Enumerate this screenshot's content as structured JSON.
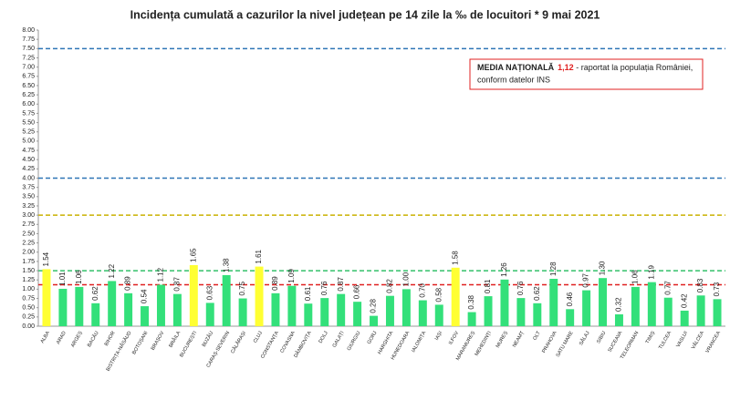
{
  "chart_data": {
    "type": "bar",
    "title": "Incidența cumulată a cazurilor la nivel județean pe 14 zile la ‰ de locuitori *  9 mai 2021",
    "categories": [
      "ALBA",
      "ARAD",
      "ARGEȘ",
      "BACĂU",
      "BIHOR",
      "BISTRIȚA-NĂSĂUD",
      "BOTOȘANI",
      "BRAȘOV",
      "BRĂILA",
      "BUCUREȘTI",
      "BUZĂU",
      "CARAȘ-SEVERIN",
      "CĂLĂRAȘI",
      "CLUJ",
      "CONSTANȚA",
      "COVASNA",
      "DÂMBOVIȚA",
      "DOLJ",
      "GALAȚI",
      "GIURGIU",
      "GORJ",
      "HARGHITA",
      "HUNEDOARA",
      "IALOMIȚA",
      "IAȘI",
      "ILFOV",
      "MARAMUREȘ",
      "MEHEDINȚI",
      "MUREȘ",
      "NEAMȚ",
      "OLT",
      "PRAHOVA",
      "SATU MARE",
      "SĂLAJ",
      "SIBIU",
      "SUCEAVA",
      "TELEORMAN",
      "TIMIȘ",
      "TULCEA",
      "VASLUI",
      "VÂLCEA",
      "VRANCEA"
    ],
    "values": [
      1.54,
      1.01,
      1.06,
      0.62,
      1.22,
      0.89,
      0.54,
      1.12,
      0.87,
      1.65,
      0.63,
      1.38,
      0.75,
      1.61,
      0.89,
      1.09,
      0.61,
      0.76,
      0.87,
      0.66,
      0.28,
      0.82,
      1.0,
      0.7,
      0.58,
      1.58,
      0.38,
      0.81,
      1.26,
      0.76,
      0.62,
      1.28,
      0.46,
      0.97,
      1.3,
      0.32,
      1.06,
      1.19,
      0.77,
      0.42,
      0.83,
      0.73
    ],
    "value_labels": [
      "1.54",
      "1.01",
      "1.06",
      "0.62",
      "1.22",
      "0.89",
      "0.54",
      "1.12",
      "0.87",
      "1.65",
      "0.63",
      "1.38",
      "0.75",
      "1.61",
      "0.89",
      "1.09",
      "0.61",
      "0.76",
      "0.87",
      "0.66",
      "0.28",
      "0.82",
      "1.00",
      "0.70",
      "0.58",
      "1.58",
      "0.38",
      "0.81",
      "1.26",
      "0.76",
      "0.62",
      "1.28",
      "0.46",
      "0.97",
      "1.30",
      "0.32",
      "1.06",
      "1.19",
      "0.77",
      "0.42",
      "0.83",
      "0.73"
    ],
    "colors": [
      "#ffff33",
      "#33e07a",
      "#33e07a",
      "#33e07a",
      "#33e07a",
      "#33e07a",
      "#33e07a",
      "#33e07a",
      "#33e07a",
      "#ffff33",
      "#33e07a",
      "#33e07a",
      "#33e07a",
      "#ffff33",
      "#33e07a",
      "#33e07a",
      "#33e07a",
      "#33e07a",
      "#33e07a",
      "#33e07a",
      "#33e07a",
      "#33e07a",
      "#33e07a",
      "#33e07a",
      "#33e07a",
      "#ffff33",
      "#33e07a",
      "#33e07a",
      "#33e07a",
      "#33e07a",
      "#33e07a",
      "#33e07a",
      "#33e07a",
      "#33e07a",
      "#33e07a",
      "#33e07a",
      "#33e07a",
      "#33e07a",
      "#33e07a",
      "#33e07a",
      "#33e07a",
      "#33e07a"
    ],
    "ylim": [
      0,
      8
    ],
    "yticks": [
      {
        "value": 0,
        "label": "0.00"
      },
      {
        "value": 0.25,
        "label": "0.25"
      },
      {
        "value": 0.5,
        "label": "0.50"
      },
      {
        "value": 0.75,
        "label": "0.75"
      },
      {
        "value": 1,
        "label": "1.00"
      },
      {
        "value": 1.25,
        "label": "1.25"
      },
      {
        "value": 1.5,
        "label": "1.50"
      },
      {
        "value": 1.75,
        "label": "1.75"
      },
      {
        "value": 2,
        "label": "2.00"
      },
      {
        "value": 2.25,
        "label": "2.25"
      },
      {
        "value": 2.5,
        "label": "2.50"
      },
      {
        "value": 2.75,
        "label": "2.75"
      },
      {
        "value": 3,
        "label": "3.00"
      },
      {
        "value": 3.25,
        "label": "3.25"
      },
      {
        "value": 3.5,
        "label": "3.50"
      },
      {
        "value": 3.75,
        "label": "3.75"
      },
      {
        "value": 4,
        "label": "4.00"
      },
      {
        "value": 4.25,
        "label": "4.25"
      },
      {
        "value": 4.5,
        "label": "4.50"
      },
      {
        "value": 4.75,
        "label": "4.75"
      },
      {
        "value": 5,
        "label": "5.00"
      },
      {
        "value": 5.25,
        "label": "5.25"
      },
      {
        "value": 5.5,
        "label": "5.50"
      },
      {
        "value": 5.75,
        "label": "5.75"
      },
      {
        "value": 6,
        "label": "6.00"
      },
      {
        "value": 6.25,
        "label": "6.25"
      },
      {
        "value": 6.5,
        "label": "6.50"
      },
      {
        "value": 6.75,
        "label": "6.75"
      },
      {
        "value": 7,
        "label": "7.00"
      },
      {
        "value": 7.25,
        "label": "7.25"
      },
      {
        "value": 7.5,
        "label": "7.50"
      },
      {
        "value": 7.75,
        "label": "7.75"
      },
      {
        "value": 8,
        "label": "8.00"
      }
    ],
    "reference_lines": [
      {
        "value": 7.5,
        "color": "#2e75b6"
      },
      {
        "value": 4,
        "color": "#2e75b6"
      },
      {
        "value": 3,
        "color": "#c9b000"
      },
      {
        "value": 1.5,
        "color": "#33c06a"
      },
      {
        "value": 1.12,
        "color": "#e02020"
      }
    ],
    "annotation": {
      "label": "MEDIA NAȚIONALĂ",
      "value": "1,12",
      "text": " - raportat la populația României,",
      "text2": "conform datelor INS"
    }
  }
}
